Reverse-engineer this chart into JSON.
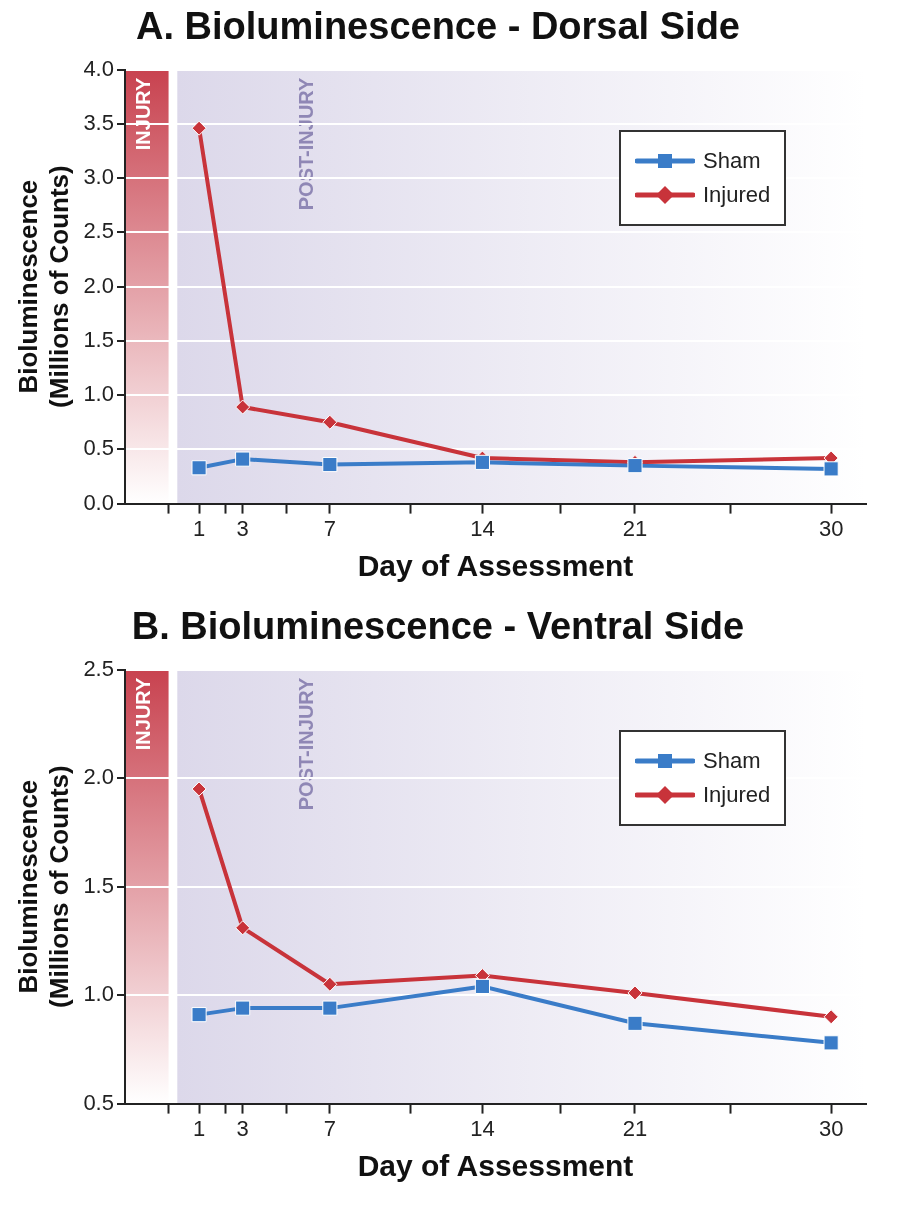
{
  "chart_data": [
    {
      "type": "line",
      "title": "A. Bioluminescence - Dorsal Side",
      "xlabel": "Day of Assessment",
      "ylabel": "Bioluminescence\n(Millions of Counts)",
      "x": [
        1,
        3,
        7,
        14,
        21,
        30
      ],
      "series": [
        {
          "name": "Sham",
          "color": "#3a7cc8",
          "marker": "square",
          "values": [
            0.33,
            0.41,
            0.36,
            0.38,
            0.35,
            0.32
          ]
        },
        {
          "name": "Injured",
          "color": "#c8333a",
          "marker": "diamond",
          "values": [
            3.46,
            0.89,
            0.75,
            0.42,
            0.38,
            0.42
          ]
        }
      ],
      "xlim": [
        -2.4,
        31.6
      ],
      "xticks": [
        {
          "value": -0.4,
          "label": null
        },
        1,
        {
          "value": 2.2,
          "label": null
        },
        3,
        {
          "value": 5,
          "label": null
        },
        7,
        {
          "value": 10.7,
          "label": null
        },
        14,
        {
          "value": 17.6,
          "label": null
        },
        21,
        {
          "value": 25.4,
          "label": null
        },
        30
      ],
      "ylim": [
        0,
        4
      ],
      "yticks": [
        {
          "value": 0,
          "label": "0.0"
        },
        0.5,
        {
          "value": 1,
          "label": "1.0"
        },
        1.5,
        {
          "value": 2,
          "label": "2.0"
        },
        2.5,
        {
          "value": 3,
          "label": "3.0"
        },
        3.5,
        {
          "value": 4,
          "label": "4.0"
        }
      ],
      "bands": [
        {
          "axis": "x",
          "from": -2.4,
          "to": -0.4,
          "label": "INJURY",
          "color": "#c8424f"
        },
        {
          "axis": "x",
          "from": 0,
          "to": 31.6,
          "label": "POST-INJURY",
          "color": "#dcd8ea"
        }
      ],
      "grid": "y",
      "legend": "top right",
      "line_style": "solid"
    },
    {
      "type": "line",
      "title": "B. Bioluminescence - Ventral Side",
      "xlabel": "Day of Assessment",
      "ylabel": "Bioluminescence\n(Millions of Counts)",
      "x": [
        1,
        3,
        7,
        14,
        21,
        30
      ],
      "series": [
        {
          "name": "Sham",
          "color": "#3a7cc8",
          "marker": "square",
          "values": [
            0.91,
            0.94,
            0.94,
            1.04,
            0.87,
            0.78
          ]
        },
        {
          "name": "Injured",
          "color": "#c8333a",
          "marker": "diamond",
          "values": [
            1.95,
            1.31,
            1.05,
            1.09,
            1.01,
            0.9
          ]
        }
      ],
      "xlim": [
        -2.4,
        31.6
      ],
      "xticks": [
        {
          "value": -0.4,
          "label": null
        },
        1,
        {
          "value": 2.2,
          "label": null
        },
        3,
        {
          "value": 5,
          "label": null
        },
        7,
        {
          "value": 10.7,
          "label": null
        },
        14,
        {
          "value": 17.6,
          "label": null
        },
        21,
        {
          "value": 25.4,
          "label": null
        },
        30
      ],
      "ylim": [
        0.5,
        2.5
      ],
      "yticks": [
        0.5,
        {
          "value": 1,
          "label": "1.0"
        },
        1.5,
        {
          "value": 2,
          "label": "2.0"
        },
        2.5
      ],
      "bands": [
        {
          "axis": "x",
          "from": -2.4,
          "to": -0.4,
          "label": "INJURY",
          "color": "#c8424f"
        },
        {
          "axis": "x",
          "from": 0,
          "to": 31.6,
          "label": "POST-INJURY",
          "color": "#dcd8ea"
        }
      ],
      "grid": "y",
      "legend": "top right",
      "line_style": "solid"
    }
  ]
}
